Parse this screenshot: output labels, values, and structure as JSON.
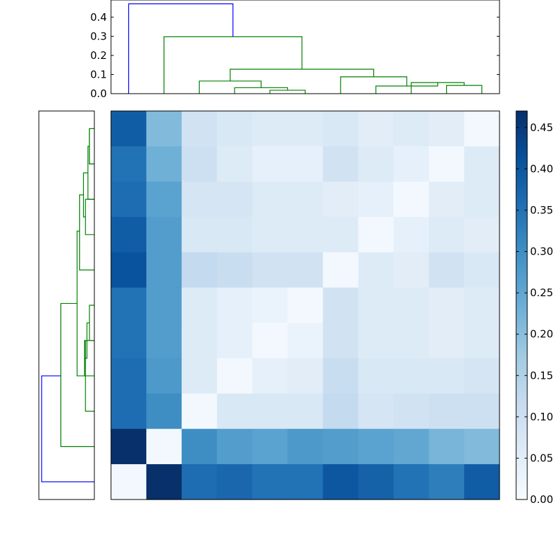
{
  "chart_data": [
    {
      "type": "heatmap",
      "title": "",
      "xlabel": "",
      "ylabel": "",
      "rows": 11,
      "cols": 11,
      "colormap": "Blues",
      "vmin": 0.0,
      "vmax": 0.47,
      "colorbar_ticks": [
        "0.00",
        "0.05",
        "0.10",
        "0.15",
        "0.20",
        "0.25",
        "0.30",
        "0.35",
        "0.40",
        "0.45"
      ],
      "colorbar_tick_values": [
        0.0,
        0.05,
        0.1,
        0.15,
        0.2,
        0.25,
        0.3,
        0.35,
        0.4,
        0.45
      ],
      "values": [
        [
          0.39,
          0.21,
          0.09,
          0.07,
          0.06,
          0.06,
          0.07,
          0.05,
          0.06,
          0.05,
          0.01
        ],
        [
          0.35,
          0.23,
          0.1,
          0.06,
          0.04,
          0.04,
          0.09,
          0.06,
          0.04,
          0.01,
          0.06
        ],
        [
          0.36,
          0.26,
          0.08,
          0.08,
          0.06,
          0.06,
          0.05,
          0.04,
          0.01,
          0.05,
          0.06
        ],
        [
          0.39,
          0.27,
          0.07,
          0.07,
          0.06,
          0.06,
          0.06,
          0.01,
          0.04,
          0.06,
          0.05
        ],
        [
          0.41,
          0.27,
          0.12,
          0.11,
          0.09,
          0.09,
          0.01,
          0.06,
          0.05,
          0.09,
          0.07
        ],
        [
          0.35,
          0.27,
          0.06,
          0.04,
          0.03,
          0.01,
          0.09,
          0.06,
          0.06,
          0.05,
          0.06
        ],
        [
          0.35,
          0.27,
          0.06,
          0.04,
          0.01,
          0.03,
          0.09,
          0.06,
          0.06,
          0.05,
          0.06
        ],
        [
          0.36,
          0.28,
          0.06,
          0.01,
          0.04,
          0.05,
          0.11,
          0.07,
          0.07,
          0.07,
          0.08
        ],
        [
          0.36,
          0.3,
          0.01,
          0.07,
          0.07,
          0.07,
          0.12,
          0.08,
          0.09,
          0.1,
          0.1
        ],
        [
          0.47,
          0.01,
          0.3,
          0.27,
          0.26,
          0.28,
          0.27,
          0.26,
          0.25,
          0.22,
          0.21
        ],
        [
          0.01,
          0.47,
          0.36,
          0.37,
          0.35,
          0.35,
          0.4,
          0.38,
          0.35,
          0.33,
          0.39
        ]
      ]
    },
    {
      "type": "line",
      "title": "",
      "xlabel": "",
      "ylabel": "",
      "ylim": [
        0.0,
        0.49
      ],
      "yticks": [
        "0.0",
        "0.1",
        "0.2",
        "0.3",
        "0.4"
      ],
      "ytick_values": [
        0.0,
        0.1,
        0.2,
        0.3,
        0.4
      ],
      "leaf_count": 11,
      "links": [
        {
          "left": 9.5,
          "right": 10.5,
          "height": 0.043,
          "left_base": 0.0,
          "right_base": 0.0,
          "color": "#008000"
        },
        {
          "left": 8.5,
          "right": 10.0,
          "height": 0.058,
          "left_base": 0.0,
          "right_base": 0.043,
          "color": "#008000"
        },
        {
          "left": 7.5,
          "right": 9.25,
          "height": 0.04,
          "left_base": 0.0,
          "right_base": 0.058,
          "color": "#008000"
        },
        {
          "left": 6.5,
          "right": 8.375,
          "height": 0.088,
          "left_base": 0.0,
          "right_base": 0.04,
          "color": "#008000"
        },
        {
          "left": 4.5,
          "right": 5.5,
          "height": 0.018,
          "left_base": 0.0,
          "right_base": 0.0,
          "color": "#008000"
        },
        {
          "left": 3.5,
          "right": 5.0,
          "height": 0.031,
          "left_base": 0.0,
          "right_base": 0.018,
          "color": "#008000"
        },
        {
          "left": 2.5,
          "right": 4.25,
          "height": 0.066,
          "left_base": 0.0,
          "right_base": 0.031,
          "color": "#008000"
        },
        {
          "left": 3.375,
          "right": 7.4375,
          "height": 0.128,
          "left_base": 0.066,
          "right_base": 0.088,
          "color": "#008000"
        },
        {
          "left": 1.5,
          "right": 5.40625,
          "height": 0.298,
          "left_base": 0.0,
          "right_base": 0.128,
          "color": "#008000"
        },
        {
          "left": 0.5,
          "right": 3.453125,
          "height": 0.47,
          "left_base": 0.0,
          "right_base": 0.298,
          "color": "#0000ff"
        }
      ]
    },
    {
      "type": "line",
      "title": "",
      "xlabel": "",
      "ylabel": "",
      "orientation": "left",
      "leaf_count": 11,
      "links": [
        {
          "top": 0.5,
          "bottom": 1.5,
          "height": 0.01,
          "top_base": 0.0,
          "bottom_base": 0.0,
          "color": "#008000"
        },
        {
          "top": 0.5,
          "bottom": 1.5,
          "height": 0.01,
          "top_base": 0.0,
          "bottom_base": 0.0,
          "color": "#008000"
        },
        {
          "top": 1.0,
          "bottom": 2.5,
          "height": 0.013,
          "top_base": 0.01,
          "bottom_base": 0.0,
          "color": "#008000"
        },
        {
          "top": 2.5,
          "bottom": 3.5,
          "height": 0.018,
          "top_base": 0.0,
          "bottom_base": 0.0,
          "color": "#008000"
        },
        {
          "top": 1.75,
          "bottom": 3.0,
          "height": 0.022,
          "top_base": 0.013,
          "bottom_base": 0.018,
          "color": "#008000"
        },
        {
          "top": 5.5,
          "bottom": 6.5,
          "height": 0.01,
          "top_base": 0.0,
          "bottom_base": 0.0,
          "color": "#008000"
        },
        {
          "top": 6.5,
          "bottom": 7.5,
          "height": 0.02,
          "top_base": 0.0,
          "bottom_base": 0.0,
          "color": "#008000"
        },
        {
          "top": 6.0,
          "bottom": 7.0,
          "height": 0.015,
          "top_base": 0.01,
          "bottom_base": 0.02,
          "color": "#008000"
        },
        {
          "top": 6.5,
          "bottom": 8.5,
          "height": 0.018,
          "top_base": 0.015,
          "bottom_base": 0.0,
          "color": "#008000"
        },
        {
          "top": 2.375,
          "bottom": 4.5,
          "height": 0.03,
          "top_base": 0.022,
          "bottom_base": 0.0,
          "color": "#008000"
        },
        {
          "top": 3.4,
          "bottom": 7.5,
          "height": 0.035,
          "top_base": 0.03,
          "bottom_base": 0.018,
          "color": "#008000"
        },
        {
          "top": 5.45,
          "bottom": 9.5,
          "height": 0.068,
          "top_base": 0.035,
          "bottom_base": 0.0,
          "color": "#008000"
        },
        {
          "top": 7.5,
          "bottom": 10.5,
          "height": 0.107,
          "top_base": 0.068,
          "bottom_base": 0.0,
          "color": "#0000ff"
        }
      ]
    }
  ]
}
